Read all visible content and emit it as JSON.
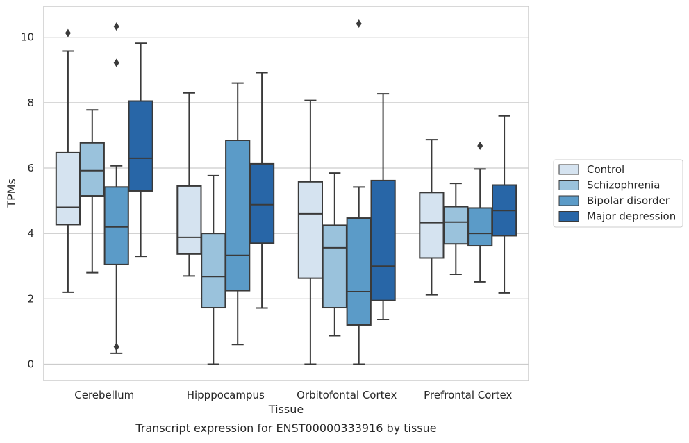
{
  "chart_data": {
    "type": "boxplot",
    "title": "",
    "caption": "Transcript expression for ENST00000333916 by tissue",
    "xlabel": "Tissue",
    "ylabel": "TPMs",
    "ylim": [
      -0.5,
      10.95
    ],
    "yticks": [
      0,
      2,
      4,
      6,
      8,
      10
    ],
    "grid": "horizontal",
    "legend_position": "right",
    "categories": [
      "Cerebellum",
      "Hipppocampus",
      "Orbitofontal Cortex",
      "Prefrontal Cortex"
    ],
    "series": [
      {
        "name": "Control",
        "color": "#d5e3f0",
        "boxes": [
          {
            "whislo": 2.2,
            "q1": 4.27,
            "med": 4.8,
            "q3": 6.47,
            "whishi": 9.58,
            "fliers": [
              10.13
            ]
          },
          {
            "whislo": 2.7,
            "q1": 3.37,
            "med": 3.88,
            "q3": 5.45,
            "whishi": 8.3,
            "fliers": []
          },
          {
            "whislo": 0.0,
            "q1": 2.63,
            "med": 4.6,
            "q3": 5.58,
            "whishi": 8.07,
            "fliers": []
          },
          {
            "whislo": 2.12,
            "q1": 3.25,
            "med": 4.33,
            "q3": 5.25,
            "whishi": 6.87,
            "fliers": []
          }
        ]
      },
      {
        "name": "Schizophrenia",
        "color": "#9ac2dc",
        "boxes": [
          {
            "whislo": 2.8,
            "q1": 5.15,
            "med": 5.92,
            "q3": 6.77,
            "whishi": 7.78,
            "fliers": []
          },
          {
            "whislo": 0.0,
            "q1": 1.73,
            "med": 2.68,
            "q3": 4.0,
            "whishi": 5.77,
            "fliers": []
          },
          {
            "whislo": 0.87,
            "q1": 1.73,
            "med": 3.56,
            "q3": 4.25,
            "whishi": 5.85,
            "fliers": []
          },
          {
            "whislo": 2.75,
            "q1": 3.68,
            "med": 4.35,
            "q3": 4.82,
            "whishi": 5.53,
            "fliers": []
          }
        ]
      },
      {
        "name": "Bipolar disorder",
        "color": "#5b9bc8",
        "boxes": [
          {
            "whislo": 0.33,
            "q1": 3.05,
            "med": 4.2,
            "q3": 5.42,
            "whishi": 6.07,
            "fliers": [
              10.33,
              9.22,
              0.53
            ]
          },
          {
            "whislo": 0.6,
            "q1": 2.25,
            "med": 3.33,
            "q3": 6.85,
            "whishi": 8.6,
            "fliers": []
          },
          {
            "whislo": 0.0,
            "q1": 1.2,
            "med": 2.22,
            "q3": 4.47,
            "whishi": 5.42,
            "fliers": [
              10.42
            ]
          },
          {
            "whislo": 2.52,
            "q1": 3.62,
            "med": 4.0,
            "q3": 4.78,
            "whishi": 5.97,
            "fliers": [
              6.68
            ]
          }
        ]
      },
      {
        "name": "Major depression",
        "color": "#2866a7",
        "boxes": [
          {
            "whislo": 3.3,
            "q1": 5.3,
            "med": 6.3,
            "q3": 8.05,
            "whishi": 9.82,
            "fliers": []
          },
          {
            "whislo": 1.72,
            "q1": 3.7,
            "med": 4.88,
            "q3": 6.13,
            "whishi": 8.92,
            "fliers": []
          },
          {
            "whislo": 1.37,
            "q1": 1.95,
            "med": 3.0,
            "q3": 5.62,
            "whishi": 8.27,
            "fliers": []
          },
          {
            "whislo": 2.18,
            "q1": 3.93,
            "med": 4.7,
            "q3": 5.48,
            "whishi": 7.6,
            "fliers": []
          }
        ]
      }
    ]
  }
}
